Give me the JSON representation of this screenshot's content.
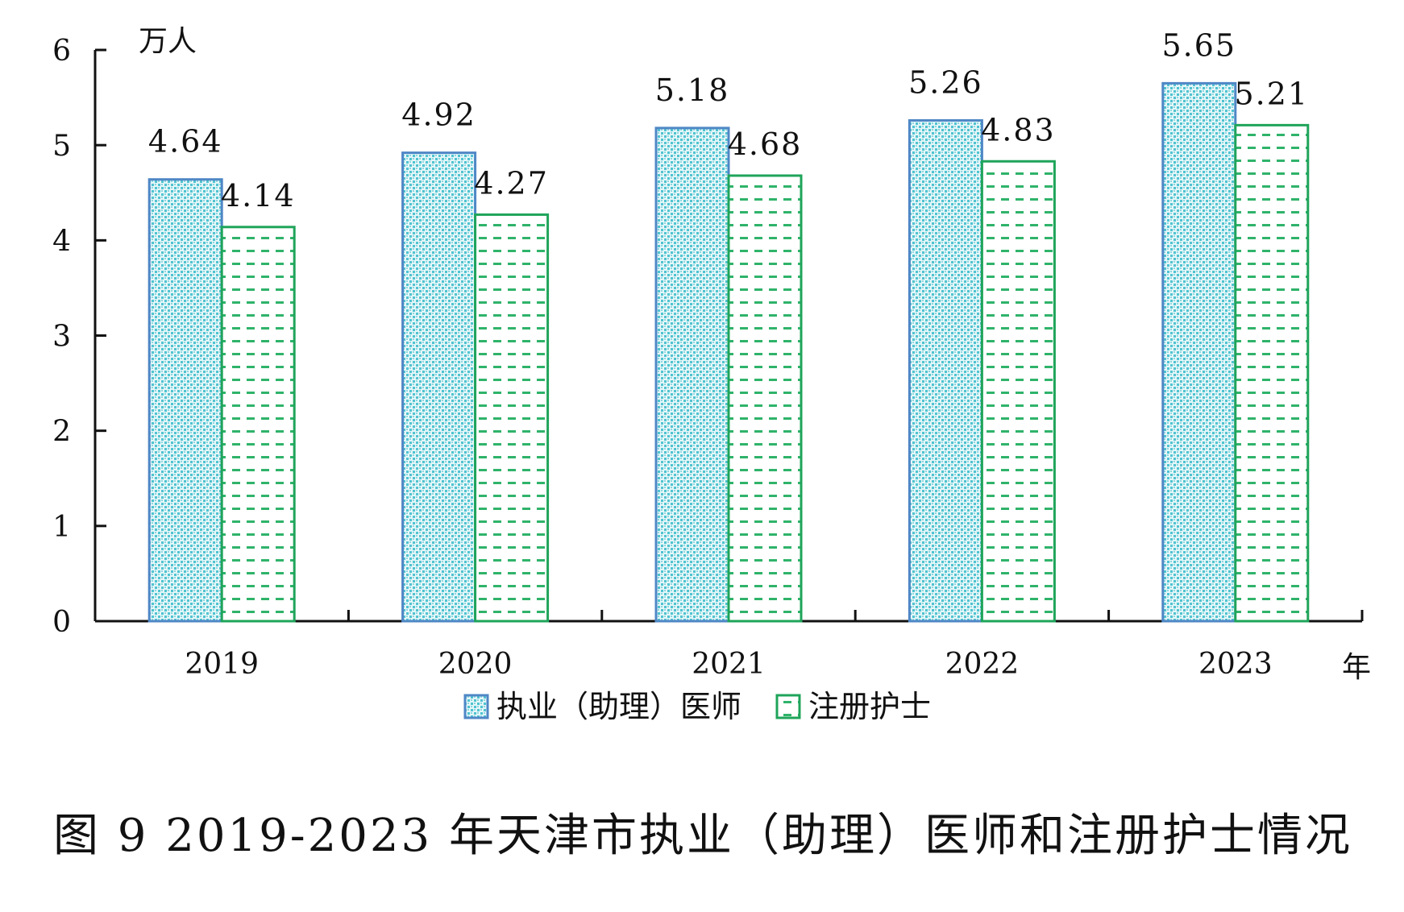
{
  "chart_data": {
    "type": "bar",
    "title": "图 9 2019-2023 年天津市执业（助理）医师和注册护士情况",
    "ylabel": "万人",
    "xlabel": "年",
    "ylim": [
      0,
      6
    ],
    "yticks": [
      0,
      1,
      2,
      3,
      4,
      5,
      6
    ],
    "categories": [
      "2019",
      "2020",
      "2021",
      "2022",
      "2023"
    ],
    "series": [
      {
        "name": "执业（助理）医师",
        "values": [
          4.64,
          4.92,
          5.18,
          5.26,
          5.65
        ],
        "labels": [
          "4.64",
          "4.92",
          "5.18",
          "5.26",
          "5.65"
        ],
        "color": "#4f87c6",
        "fill_color": "#4fc3d0"
      },
      {
        "name": "注册护士",
        "values": [
          4.14,
          4.27,
          4.68,
          4.83,
          5.21
        ],
        "labels": [
          "4.14",
          "4.27",
          "4.68",
          "4.83",
          "5.21"
        ],
        "color": "#1fa45a",
        "fill_color": "#1fa45a"
      }
    ],
    "legend_position": "bottom-center",
    "grid": false
  }
}
